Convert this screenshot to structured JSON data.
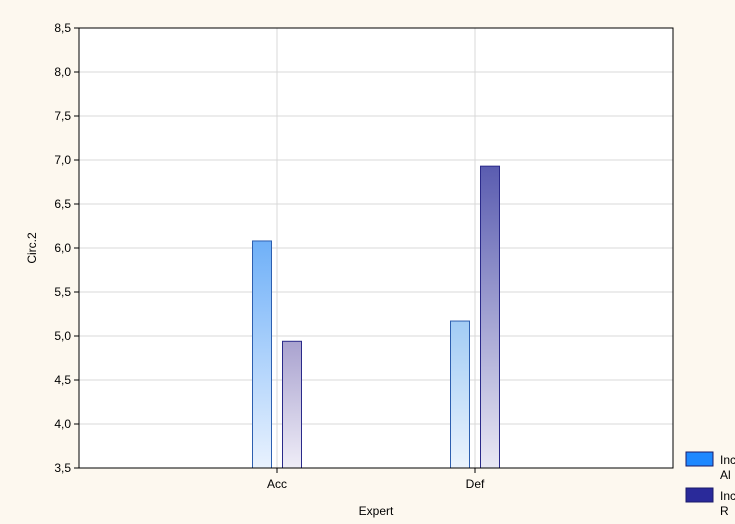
{
  "chart_data": {
    "type": "bar",
    "title": "",
    "xlabel": "Expert",
    "ylabel": "Circ.2",
    "ylim": [
      3.5,
      8.5
    ],
    "ytick_step": 0.5,
    "yticks": [
      "3,5",
      "4,0",
      "4,5",
      "5,0",
      "5,5",
      "6,0",
      "6,5",
      "7,0",
      "7,5",
      "8,0",
      "8,5"
    ],
    "categories": [
      "Acc",
      "Def"
    ],
    "grid": true,
    "legend_position": "bottom-right",
    "series": [
      {
        "name": "Inc Al",
        "legend_lines": [
          "Inc",
          "Al"
        ],
        "color": "#1e88ff",
        "values": [
          6.08,
          5.17
        ]
      },
      {
        "name": "Inc R",
        "legend_lines": [
          "Inc",
          "R"
        ],
        "color": "#2a2a9a",
        "values": [
          4.94,
          6.93
        ]
      }
    ],
    "bar_gradients": [
      [
        {
          "top": "#6fb0f8",
          "bottom": "#e9f2fe",
          "stroke": "#2d5fb0"
        },
        {
          "top": "#a9a2cf",
          "bottom": "#efedf7",
          "stroke": "#2a2a8a"
        }
      ],
      [
        {
          "top": "#a2ccf5",
          "bottom": "#eaf3fd",
          "stroke": "#2d5fb0"
        },
        {
          "top": "#5a5cb0",
          "bottom": "#e9e8f4",
          "stroke": "#2a2a8a"
        }
      ]
    ]
  }
}
